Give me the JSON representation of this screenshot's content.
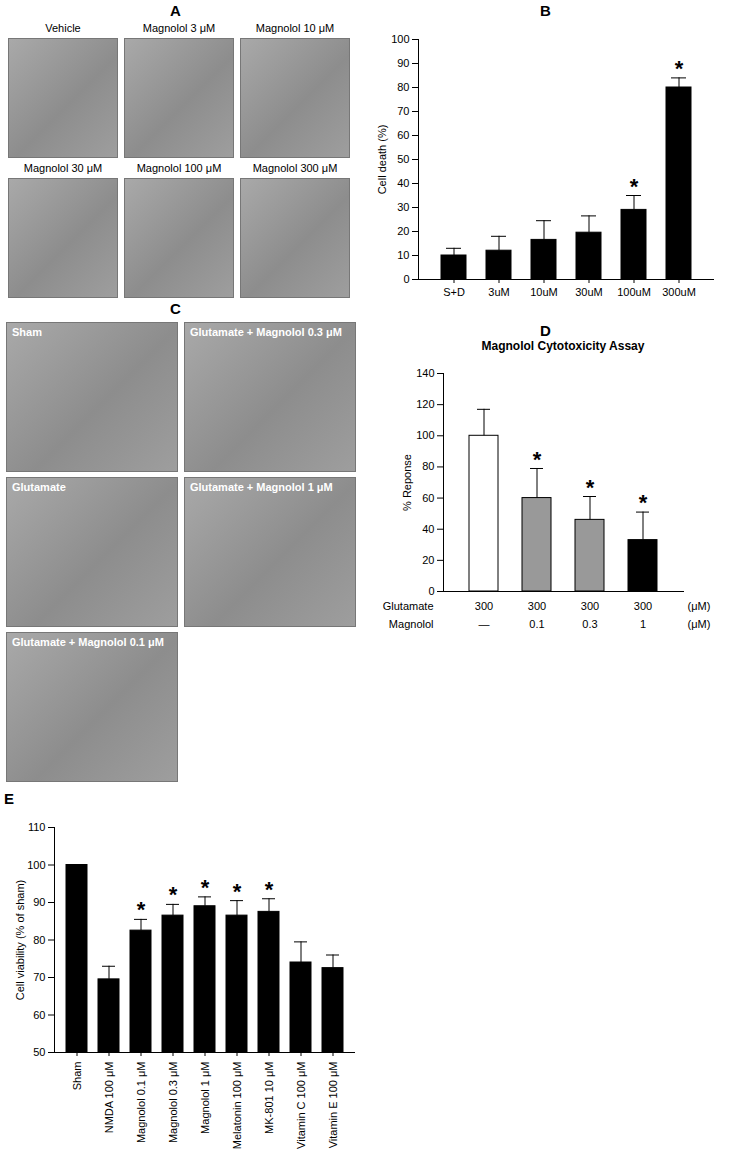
{
  "micrographs": [
    {
      "panel_label": "A",
      "labels": [
        "Vehicle",
        "Magnolol 3 μM",
        "Magnolol 10 μM",
        "Magnolol 30 μM",
        "Magnolol 100 μM",
        "Magnolol 300 μM"
      ]
    },
    {
      "panel_label": "C",
      "labels": [
        "Sham",
        "Glutamate + Magnolol 0.3 μM",
        "Glutamate",
        "Glutamate + Magnolol 1 μM",
        "Glutamate + Magnolol 0.1 μM"
      ]
    }
  ],
  "chart_data": [
    {
      "panel_label": "B",
      "type": "bar",
      "y_label": "Cell death (%)",
      "categories": [
        "S+D",
        "3uM",
        "10uM",
        "30uM",
        "100uM",
        "300uM"
      ],
      "values": [
        10,
        12,
        16.5,
        19.5,
        29,
        80
      ],
      "errors": [
        3,
        6,
        8,
        7,
        6,
        4
      ],
      "significant": [
        false,
        false,
        false,
        false,
        true,
        true
      ],
      "significance_mark": "*",
      "color": "#000000",
      "ylim": [
        0,
        100
      ],
      "yticks": [
        0,
        10,
        20,
        30,
        40,
        50,
        60,
        70,
        80,
        90,
        100
      ]
    },
    {
      "panel_label": "D",
      "type": "bar",
      "title": "Magnolol Cytotoxicity Assay",
      "y_label": "% Reponse",
      "categories": [
        null,
        null,
        null,
        null
      ],
      "values": [
        100,
        60,
        46,
        33
      ],
      "errors": [
        17,
        19,
        15,
        18
      ],
      "significant": [
        false,
        true,
        true,
        true
      ],
      "significance_mark": "*",
      "colors": [
        "#ffffff",
        "#999999",
        "#999999",
        "#000000"
      ],
      "table": [
        {
          "label": "Glutamate",
          "values": [
            "300",
            "300",
            "300",
            "300"
          ],
          "unit": "(μM)"
        },
        {
          "label": "Magnolol",
          "values": [
            "—",
            "0.1",
            "0.3",
            "1"
          ],
          "unit": "(μM)"
        }
      ],
      "ylim": [
        0,
        140
      ],
      "yticks": [
        0,
        20,
        40,
        60,
        80,
        100,
        120,
        140
      ]
    },
    {
      "panel_label": "E",
      "type": "bar",
      "y_label": "Cell viability (% of sham)",
      "categories": [
        "Sham",
        "NMDA 100 μM",
        "Magnolol 0.1 μM",
        "Magnolol 0.3 μM",
        "Magnolol 1 μM",
        "Melatonin 100 μM",
        "MK-801 10 μM",
        "Vitamin C 100 μM",
        "Vitamin E 100 μM"
      ],
      "values": [
        100,
        69.5,
        82.5,
        86.5,
        89,
        86.5,
        87.5,
        74,
        72.5
      ],
      "errors": [
        0,
        3.5,
        3,
        3,
        2.5,
        4,
        3.5,
        5.5,
        3.5
      ],
      "significant": [
        false,
        false,
        true,
        true,
        true,
        true,
        true,
        false,
        false
      ],
      "significance_mark": "*",
      "color": "#000000",
      "ylim": [
        50,
        110
      ],
      "yticks": [
        50,
        60,
        70,
        80,
        90,
        100,
        110
      ]
    }
  ]
}
